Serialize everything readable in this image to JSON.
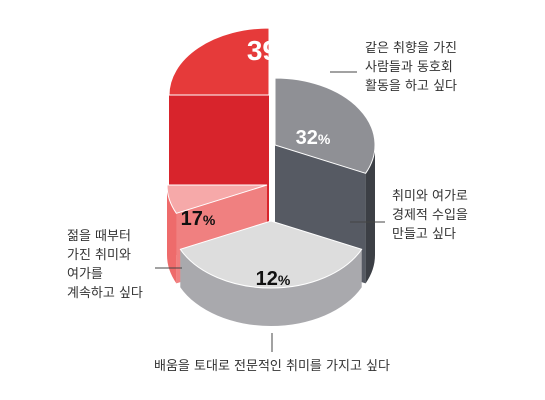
{
  "chart_data": {
    "type": "pie",
    "style": "3d-exploded-cylinder",
    "unit": "%",
    "slices": [
      {
        "value": 39,
        "label": [
          "같은 취향을 가진",
          "사람들과 동호회",
          "활동을 하고 싶다"
        ],
        "colors": {
          "top": "#e63a3a",
          "side": "#d8242c",
          "front": "#c81a22"
        }
      },
      {
        "value": 32,
        "label": [
          "취미와 여가로",
          "경제적 수입을",
          "만들고 싶다"
        ],
        "colors": {
          "top": "#8f9095",
          "side": "#565a63",
          "front": "#3c3f45"
        }
      },
      {
        "value": 12,
        "label": [
          "배움을 토대로 전문적인 취미를 가지고 싶다"
        ],
        "colors": {
          "top": "#dddddd",
          "side": "#bdbdc0",
          "front": "#a9a9ad"
        }
      },
      {
        "value": 17,
        "label": [
          "젊을 때부터",
          "가진 취미와",
          "여가를",
          "계속하고 싶다"
        ],
        "colors": {
          "top": "#f6a9a9",
          "side": "#f08080",
          "front": "#ee6b6b"
        }
      }
    ]
  }
}
